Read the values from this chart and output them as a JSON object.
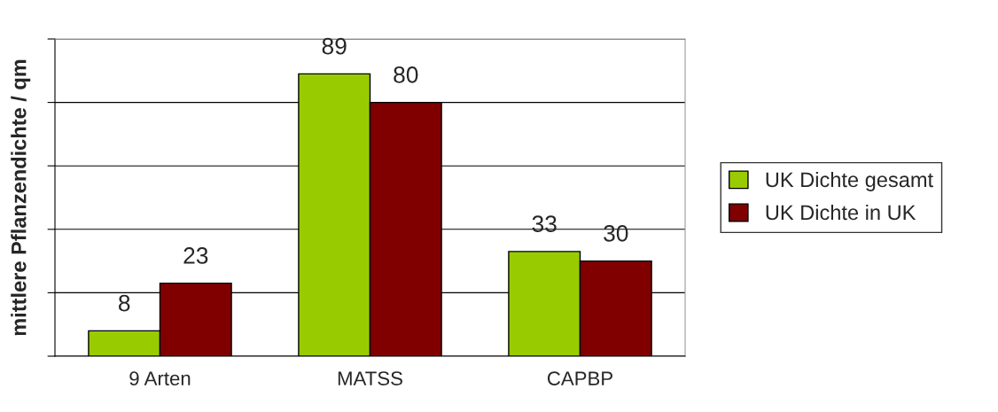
{
  "chart_data": {
    "type": "bar",
    "ylabel": "mittlere Pflanzendichte / qm",
    "categories": [
      "9 Arten",
      "MATSS",
      "CAPBP"
    ],
    "series": [
      {
        "name": "UK Dichte gesamt",
        "color": "#99cc00",
        "values": [
          8,
          89,
          33
        ]
      },
      {
        "name": "UK Dichte in UK",
        "color": "#800000",
        "values": [
          23,
          80,
          30
        ]
      }
    ],
    "ylim": [
      0,
      100
    ],
    "yticks": [
      {
        "value": 0,
        "label": null
      },
      {
        "value": 20,
        "label": null
      },
      {
        "value": 40,
        "label": null
      },
      {
        "value": 60,
        "label": null
      },
      {
        "value": 80,
        "label": null
      },
      {
        "value": 100,
        "label": null
      }
    ],
    "tick_labels": "x",
    "grid": "y",
    "legend": "right",
    "data_labels": true
  }
}
